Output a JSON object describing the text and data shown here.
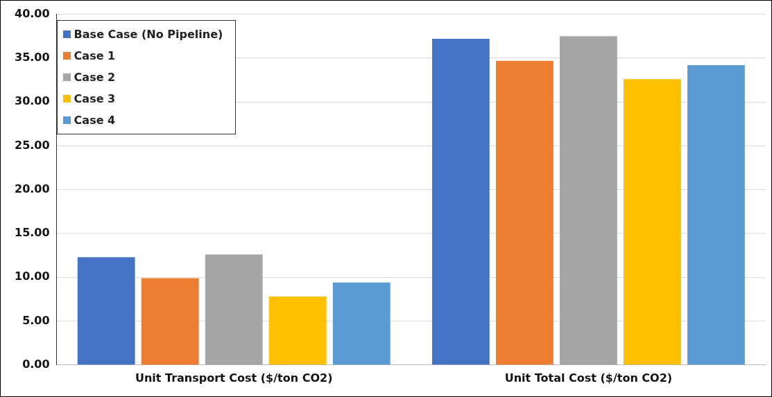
{
  "chart_data": {
    "type": "bar",
    "categories": [
      "Unit Transport Cost ($/ton CO2)",
      "Unit Total Cost ($/ton CO2)"
    ],
    "series": [
      {
        "name": "Base Case (No Pipeline)",
        "color": "#4472c4",
        "values": [
          12.3,
          37.2
        ]
      },
      {
        "name": "Case 1",
        "color": "#ed7d31",
        "values": [
          9.9,
          34.7
        ]
      },
      {
        "name": "Case 2",
        "color": "#a5a5a5",
        "values": [
          12.6,
          37.5
        ]
      },
      {
        "name": "Case 3",
        "color": "#ffc000",
        "values": [
          7.8,
          32.6
        ]
      },
      {
        "name": "Case 4",
        "color": "#5b9bd5",
        "values": [
          9.4,
          34.2
        ]
      }
    ],
    "ylim": [
      0,
      40
    ],
    "yticks": [
      {
        "value": 0,
        "label": "0.00"
      },
      {
        "value": 5,
        "label": "5.00"
      },
      {
        "value": 10,
        "label": "10.00"
      },
      {
        "value": 15,
        "label": "15.00"
      },
      {
        "value": 20,
        "label": "20.00"
      },
      {
        "value": 25,
        "label": "25.00"
      },
      {
        "value": 30,
        "label": "30.00"
      },
      {
        "value": 35,
        "label": "35.00"
      },
      {
        "value": 40,
        "label": "40.00"
      }
    ],
    "grid": "y",
    "legend": "top left"
  }
}
